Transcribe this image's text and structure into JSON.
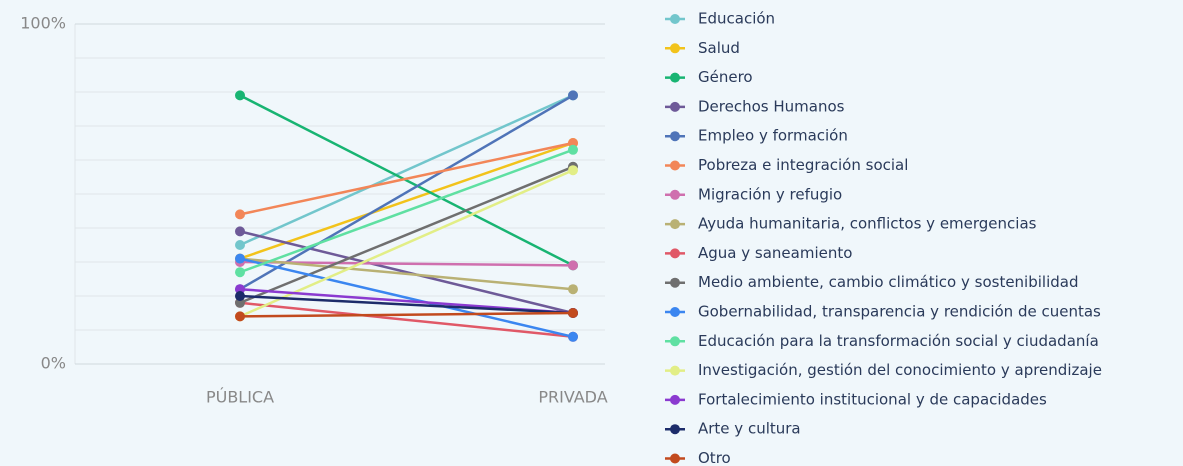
{
  "chart_data": {
    "type": "line",
    "categories": [
      "PÚBLICA",
      "PRIVADA"
    ],
    "ylim": [
      0,
      100
    ],
    "yticks": [
      {
        "value": 0,
        "label": "0%"
      },
      {
        "value": 100,
        "label": "100%"
      }
    ],
    "ygrid": [
      10,
      20,
      30,
      40,
      50,
      60,
      70,
      80,
      90,
      100
    ],
    "series": [
      {
        "name": "Educación",
        "color": "#72c6cc",
        "values": [
          35,
          79
        ]
      },
      {
        "name": "Salud",
        "color": "#f2c31b",
        "values": [
          31,
          65
        ]
      },
      {
        "name": "Género",
        "color": "#18b472",
        "values": [
          79,
          29
        ]
      },
      {
        "name": "Derechos Humanos",
        "color": "#6e5a98",
        "values": [
          39,
          15
        ]
      },
      {
        "name": "Empleo y formación",
        "color": "#4f74b8",
        "values": [
          22,
          79
        ]
      },
      {
        "name": "Pobreza e integración social",
        "color": "#f28658",
        "values": [
          44,
          65
        ]
      },
      {
        "name": "Migración y refugio",
        "color": "#cf6fae",
        "values": [
          30,
          29
        ]
      },
      {
        "name": "Ayuda humanitaria, conflictos y emergencias",
        "color": "#b9b174",
        "values": [
          31,
          22
        ]
      },
      {
        "name": "Agua y saneamiento",
        "color": "#e05867",
        "values": [
          18,
          8
        ]
      },
      {
        "name": "Medio ambiente, cambio climático y sostenibilidad",
        "color": "#6f6f6f",
        "values": [
          18,
          58
        ]
      },
      {
        "name": "Gobernabilidad, transparencia y rendición de cuentas",
        "color": "#3b86f0",
        "values": [
          31,
          8
        ]
      },
      {
        "name": "Educación para la transformación social y ciudadanía",
        "color": "#5fe0a2",
        "values": [
          27,
          63
        ]
      },
      {
        "name": "Investigación, gestión del conocimiento y aprendizaje",
        "color": "#e2ee86",
        "values": [
          14,
          57
        ]
      },
      {
        "name": "Fortalecimiento institucional y de capacidades",
        "color": "#8b3ad0",
        "values": [
          22,
          15
        ]
      },
      {
        "name": "Arte y cultura",
        "color": "#1d2c6a",
        "values": [
          20,
          15
        ]
      },
      {
        "name": "Otro",
        "color": "#c24a1e",
        "values": [
          14,
          15
        ]
      }
    ]
  }
}
